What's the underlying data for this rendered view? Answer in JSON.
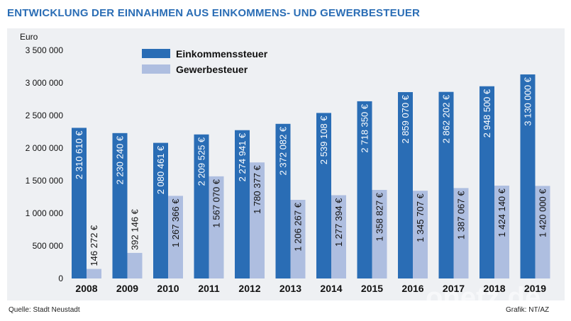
{
  "header": {
    "title": "ENTWICKLUNG DER EINNAHMEN AUS EINKOMMENS- UND GEWERBESTEUER"
  },
  "footer": {
    "source": "Quelle: Stadt Neustadt",
    "credit": "Grafik: NT/AZ"
  },
  "watermark": "onetz.de",
  "colors": {
    "series1": "#2a6db5",
    "series2": "#aebee0",
    "title": "#2a6db5",
    "panel": "#eef0f3"
  },
  "chart_data": {
    "type": "bar",
    "title": "ENTWICKLUNG DER EINNAHMEN AUS EINKOMMENS- UND GEWERBESTEUER",
    "ylabel": "Euro",
    "xlabel": "",
    "ylim": [
      0,
      3500000
    ],
    "yticks": [
      0,
      500000,
      1000000,
      1500000,
      2000000,
      2500000,
      3000000,
      3500000
    ],
    "ytick_labels": [
      "0",
      "500 000",
      "1 000 000",
      "1 500 000",
      "2 000 000",
      "2 500 000",
      "3 000 000",
      "3 500 000"
    ],
    "grid": false,
    "legend_position": "top-left",
    "categories": [
      "2008",
      "2009",
      "2010",
      "2011",
      "2012",
      "2013",
      "2014",
      "2015",
      "2016",
      "2017",
      "2018",
      "2019"
    ],
    "series": [
      {
        "name": "Einkommenssteuer",
        "values": [
          2310610,
          2230240,
          2080461,
          2209525,
          2274941,
          2372082,
          2539108,
          2718350,
          2859070,
          2862202,
          2948500,
          3130000
        ],
        "labels": [
          "2 310 610 €",
          "2 230 240 €",
          "2 080 461 €",
          "2 209 525 €",
          "2 274 941 €",
          "2 372 082 €",
          "2 539 108 €",
          "2 718 350 €",
          "2 859 070 €",
          "2 862 202 €",
          "2 948 500 €",
          "3 130 000 €"
        ]
      },
      {
        "name": "Gewerbesteuer",
        "values": [
          146272,
          392146,
          1267366,
          1567070,
          1780377,
          1206267,
          1277394,
          1358827,
          1345707,
          1387067,
          1424140,
          1420000
        ],
        "labels": [
          "146 272 €",
          "392 146 €",
          "1 267 366 €",
          "1 567 070 €",
          "1 780 377 €",
          "1 206 267 €",
          "1 277 394 €",
          "1 358 827 €",
          "1 345 707 €",
          "1 387 067 €",
          "1 424 140 €",
          "1 420 000 €"
        ]
      }
    ]
  }
}
